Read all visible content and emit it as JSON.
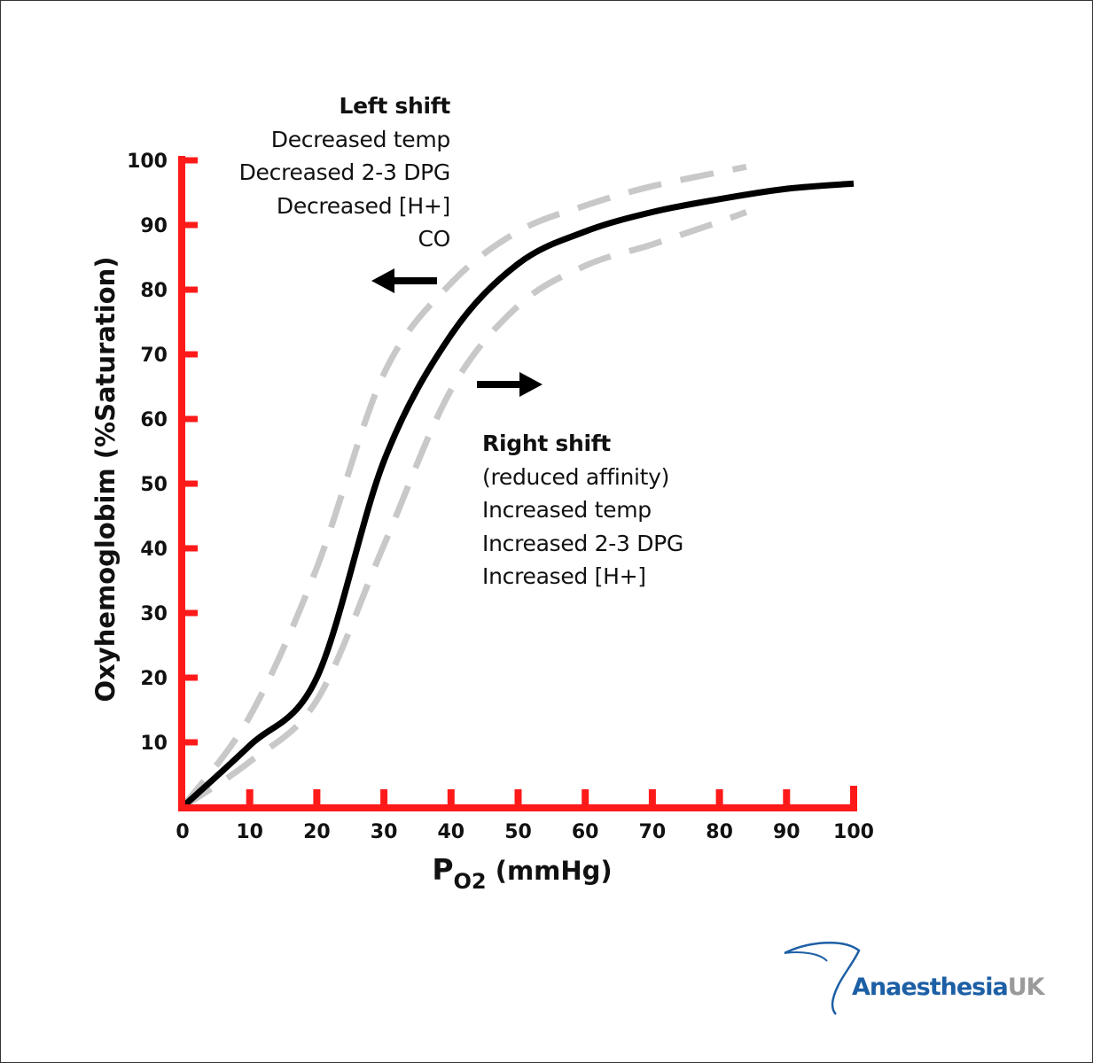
{
  "chart_data": {
    "type": "line",
    "xlabel": "P",
    "xlabel_subscript": "O2",
    "xlabel_unit": "(mmHg)",
    "ylabel": "Oxyhemoglobim  (%Saturation)",
    "xlim": [
      0,
      100
    ],
    "ylim": [
      0,
      100
    ],
    "xticks": [
      0,
      10,
      20,
      30,
      40,
      50,
      60,
      70,
      80,
      90,
      100
    ],
    "yticks": [
      10,
      20,
      30,
      40,
      50,
      60,
      70,
      80,
      90,
      100
    ],
    "grid": false,
    "series": [
      {
        "style": "solid",
        "color": "#000000",
        "x": [
          0,
          10,
          20,
          30,
          40,
          50,
          60,
          70,
          80,
          90,
          100
        ],
        "y": [
          0,
          9.5,
          20,
          53.5,
          73,
          84,
          89,
          92,
          94,
          95.6,
          96.4
        ]
      },
      {
        "style": "dashed",
        "color": "#c8c8c8",
        "x": [
          0,
          10,
          20,
          30,
          40,
          50,
          60,
          70,
          84
        ],
        "y": [
          0,
          14,
          37,
          67,
          81,
          89,
          93,
          96,
          99
        ]
      },
      {
        "style": "dashed",
        "color": "#c8c8c8",
        "x": [
          0,
          10,
          20,
          30,
          40,
          50,
          60,
          70,
          80,
          84
        ],
        "y": [
          0,
          7,
          16.5,
          40.5,
          64.5,
          77.5,
          83.7,
          87,
          90.5,
          92
        ]
      }
    ],
    "annotations": {
      "left": {
        "title": "Left shift",
        "lines": [
          "Decreased temp",
          "Decreased 2-3 DPG",
          "Decreased [H+]",
          "CO"
        ],
        "arrow": "left"
      },
      "right": {
        "title": "Right shift",
        "lines": [
          "(reduced affinity)",
          "Increased temp",
          "Increased 2-3 DPG",
          "Increased [H+]"
        ],
        "arrow": "right"
      }
    },
    "axis_color": "#ff1a1a"
  },
  "logo": {
    "text_main": "Anaesthesia",
    "text_suffix": "UK",
    "color_main": "#1d5fa5",
    "color_suffix": "#9a9a9a"
  }
}
